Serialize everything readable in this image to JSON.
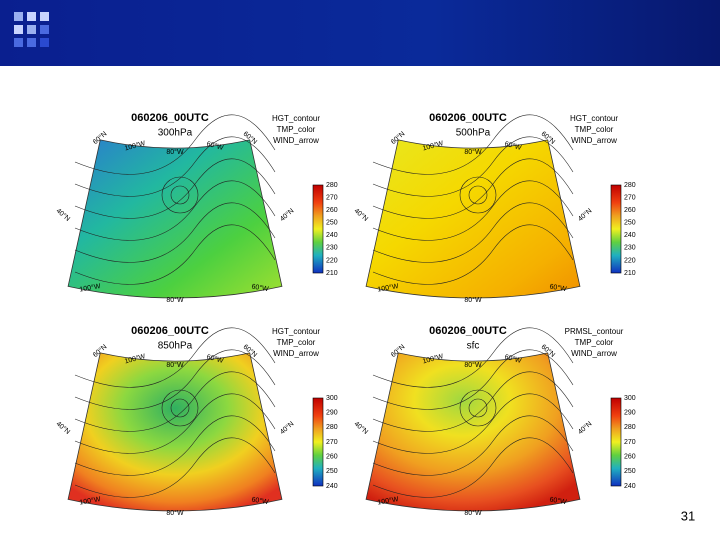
{
  "slide": {
    "page_number": "31"
  },
  "map_labels": [
    "60°N",
    "100°W",
    "80°W",
    "60°W",
    "40°N"
  ],
  "panels": [
    {
      "title": "060206_00UTC",
      "level": "300hPa",
      "legend": [
        "HGT_contour",
        "TMP_color",
        "WIND_arrow"
      ],
      "colorbar": [
        280,
        270,
        260,
        250,
        240,
        230,
        220,
        210
      ]
    },
    {
      "title": "060206_00UTC",
      "level": "500hPa",
      "legend": [
        "HGT_contour",
        "TMP_color",
        "WIND_arrow"
      ],
      "colorbar": [
        280,
        270,
        260,
        250,
        240,
        230,
        220,
        210
      ]
    },
    {
      "title": "060206_00UTC",
      "level": "850hPa",
      "legend": [
        "HGT_contour",
        "TMP_color",
        "WIND_arrow"
      ],
      "colorbar": [
        300,
        290,
        280,
        270,
        260,
        250,
        240
      ]
    },
    {
      "title": "060206_00UTC",
      "level": "sfc",
      "legend": [
        "PRMSL_contour",
        "TMP_color",
        "WIND_arrow"
      ],
      "colorbar": [
        300,
        290,
        280,
        270,
        260,
        250,
        240
      ]
    }
  ]
}
